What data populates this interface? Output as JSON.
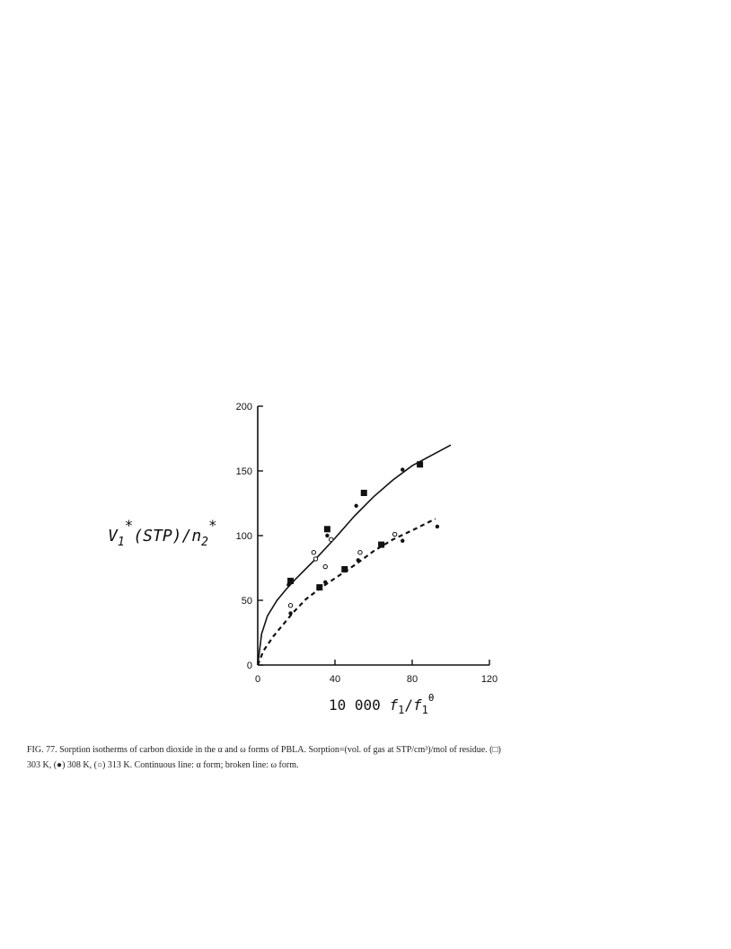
{
  "chart_data": {
    "type": "scatter",
    "title": "",
    "ylabel": {
      "symbol": "V",
      "sub1": "1",
      "sup1": "*",
      "middle": "(STP)/n",
      "sub2": "2",
      "sup2": "*"
    },
    "xlabel": {
      "prefix": "10 000 ",
      "f": "f",
      "sub1": "1",
      "slash": "/",
      "sub2": "1",
      "sup": "θ"
    },
    "xlim": [
      0,
      120
    ],
    "ylim": [
      0,
      200
    ],
    "xticks": [
      "0",
      "40",
      "80",
      "120"
    ],
    "yticks": [
      "0",
      "50",
      "100",
      "150",
      "200"
    ],
    "x_tick_values": [
      0,
      40,
      80,
      120
    ],
    "y_tick_values": [
      0,
      50,
      100,
      150,
      200
    ],
    "grid": false,
    "series": [
      {
        "marker": "square",
        "points": [
          [
            17,
            65
          ],
          [
            36,
            105
          ],
          [
            55,
            133
          ],
          [
            84,
            155
          ],
          [
            45,
            74
          ],
          [
            64,
            93
          ],
          [
            32,
            60
          ]
        ]
      },
      {
        "marker": "dot",
        "points": [
          [
            17,
            40
          ],
          [
            35,
            64
          ],
          [
            52,
            81
          ],
          [
            75,
            96
          ],
          [
            93,
            107
          ],
          [
            16,
            62
          ],
          [
            36,
            100
          ],
          [
            51,
            123
          ],
          [
            75,
            151
          ]
        ]
      },
      {
        "marker": "circle",
        "points": [
          [
            17,
            46
          ],
          [
            29,
            87
          ],
          [
            38,
            97
          ],
          [
            35,
            76
          ],
          [
            53,
            87
          ],
          [
            71,
            101
          ],
          [
            30,
            82
          ]
        ]
      }
    ],
    "curves": [
      {
        "style": "solid",
        "points": [
          [
            0,
            0
          ],
          [
            2,
            24
          ],
          [
            5,
            38
          ],
          [
            10,
            50
          ],
          [
            15,
            59
          ],
          [
            20,
            67
          ],
          [
            30,
            82
          ],
          [
            40,
            98
          ],
          [
            50,
            115
          ],
          [
            60,
            130
          ],
          [
            70,
            143
          ],
          [
            80,
            154
          ],
          [
            90,
            162
          ],
          [
            100,
            170
          ]
        ]
      },
      {
        "style": "dashed",
        "points": [
          [
            0,
            0
          ],
          [
            3,
            11
          ],
          [
            8,
            22
          ],
          [
            13,
            31
          ],
          [
            18,
            40
          ],
          [
            25,
            51
          ],
          [
            33,
            60
          ],
          [
            40,
            67
          ],
          [
            50,
            77
          ],
          [
            60,
            88
          ],
          [
            70,
            97
          ],
          [
            80,
            104
          ],
          [
            92,
            113
          ]
        ]
      }
    ]
  },
  "caption": {
    "line1": "FIG. 77.  Sorption isotherms of carbon dioxide in the α and ω forms of PBLA. Sorption=(vol. of gas at STP/cm³)/mol of residue. (□)",
    "line2": "303 K, (●) 308 K, (○) 313 K. Continuous line: α form; broken line: ω form."
  }
}
